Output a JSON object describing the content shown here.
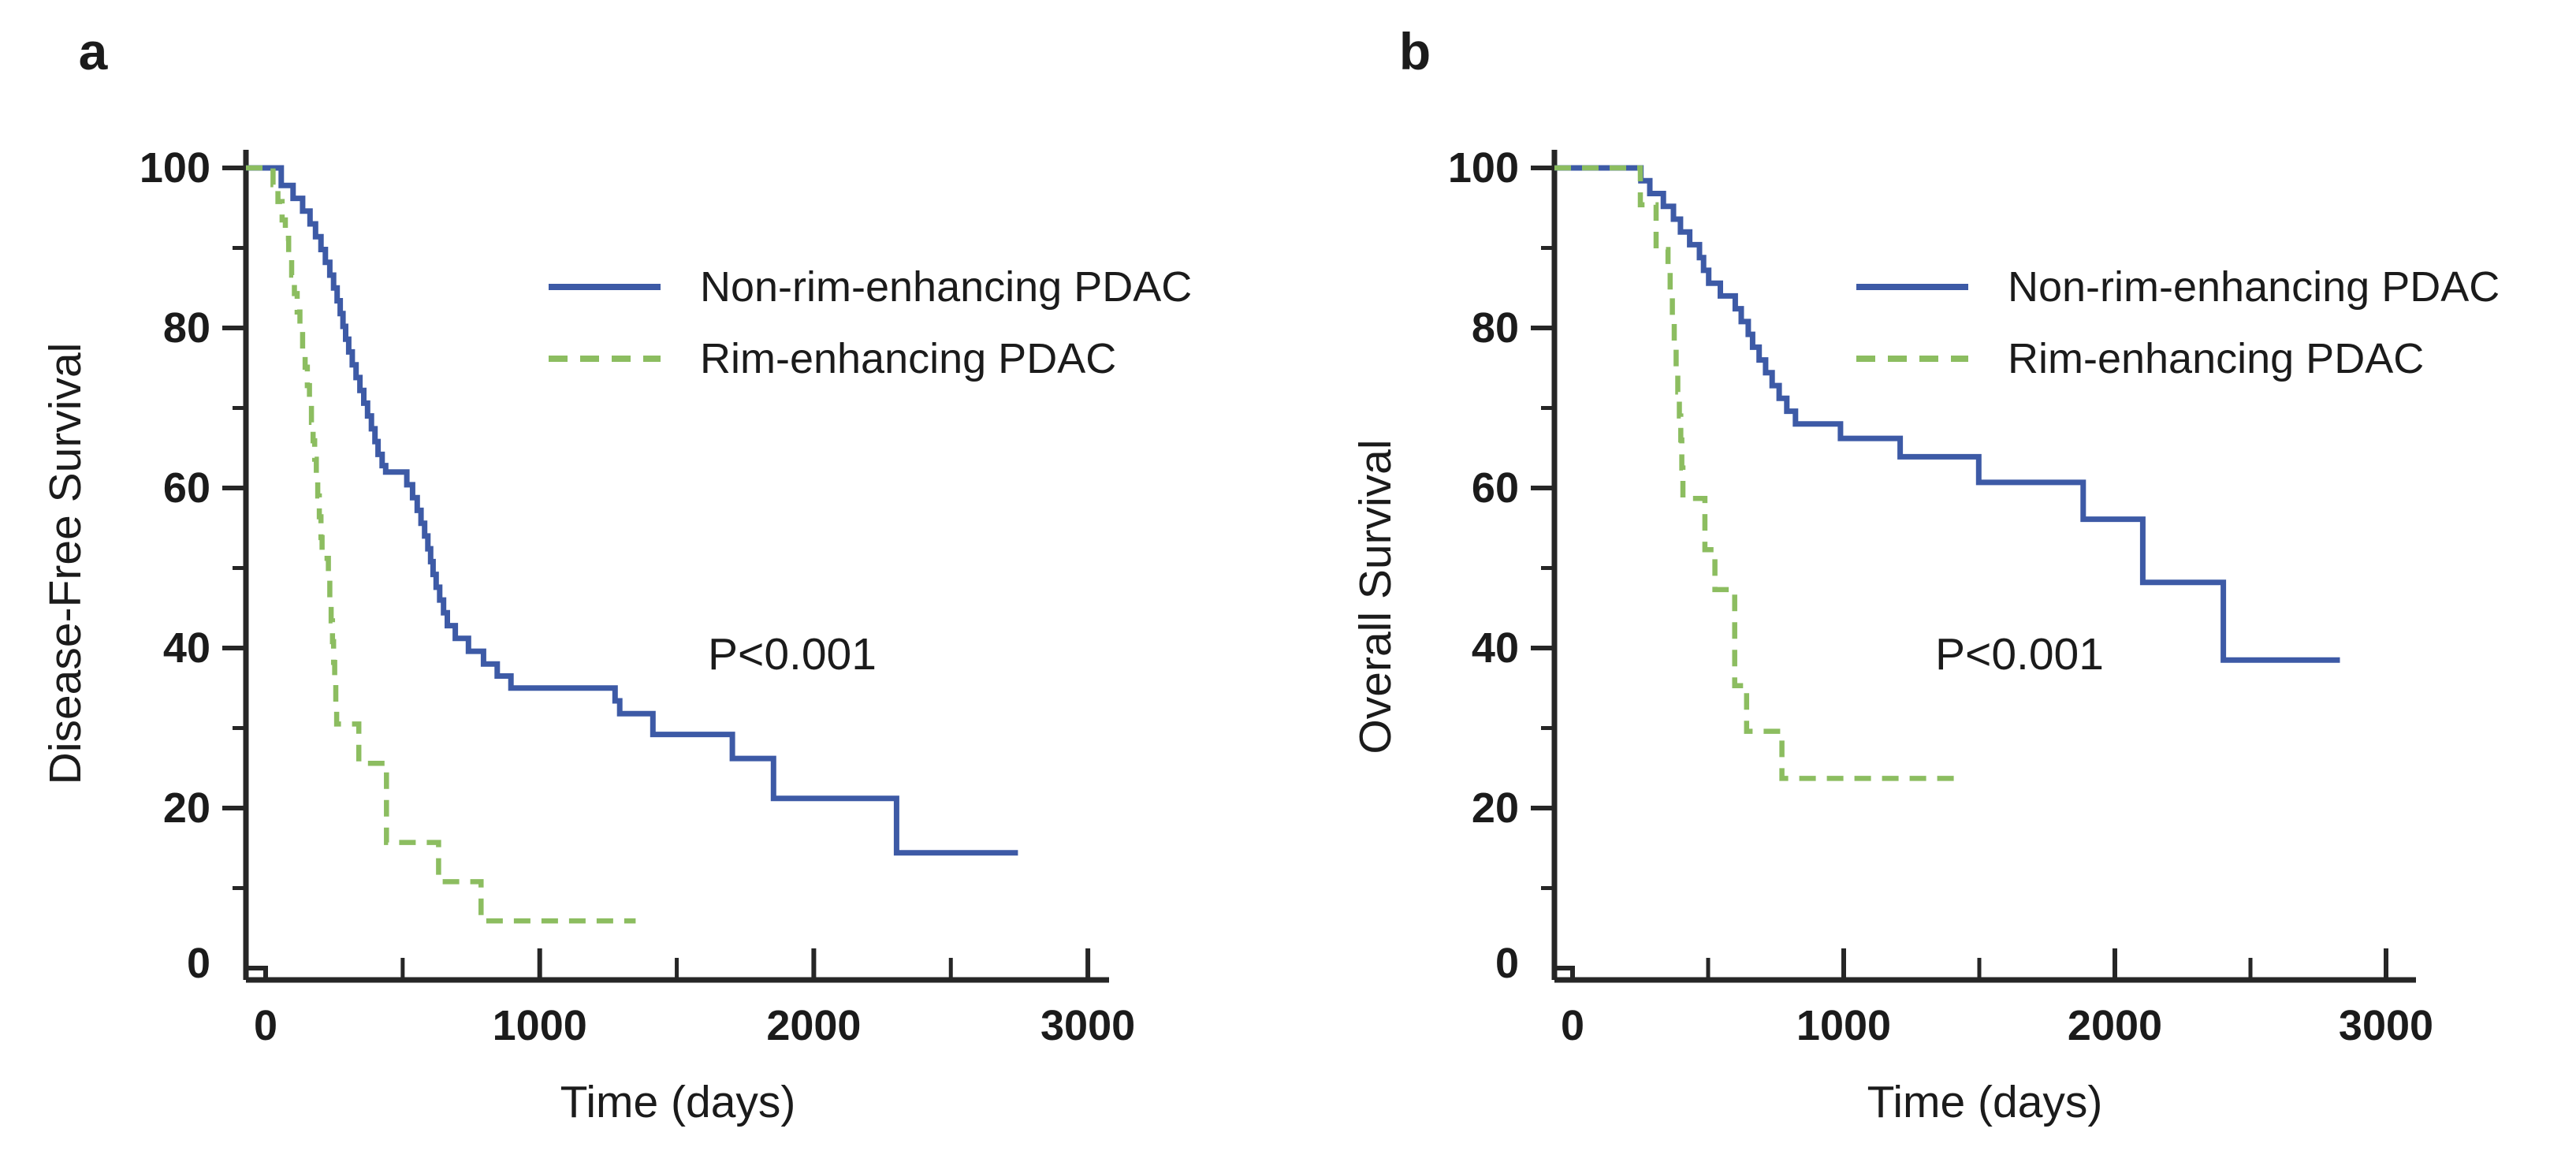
{
  "figure": {
    "background": "#ffffff",
    "panels": [
      {
        "label": "a",
        "ylabel": "Disease-Free Survival",
        "xlabel": "Time (days)",
        "annotation": "P<0.001",
        "legend": [
          "Non-rim-enhancing PDAC",
          "Rim-enhancing PDAC"
        ]
      },
      {
        "label": "b",
        "ylabel": "Overall Survival",
        "xlabel": "Time (days)",
        "annotation": "P<0.001",
        "legend": [
          "Non-rim-enhancing PDAC",
          "Rim-enhancing PDAC"
        ]
      }
    ],
    "colors": {
      "non_rim_enhancing": "#3d5aa6",
      "rim_enhancing": "#8cbd60",
      "axis": "#262626",
      "text": "#1b1b1b"
    }
  },
  "chart_data": [
    {
      "type": "line",
      "subtype": "kaplan-meier-step",
      "panel": "a",
      "title": "",
      "xlabel": "Time (days)",
      "ylabel": "Disease-Free Survival",
      "annotation": "P<0.001",
      "xlim": [
        0,
        3000
      ],
      "ylim": [
        0,
        100
      ],
      "xticks": [
        0,
        1000,
        2000,
        3000
      ],
      "xminorticks": [
        500,
        1500,
        2500
      ],
      "yticks": [
        0,
        20,
        40,
        60,
        80,
        100
      ],
      "yminorticks": [
        10,
        30,
        50,
        70,
        90
      ],
      "grid": false,
      "legend_position": "upper-right-inside",
      "series": [
        {
          "name": "Non-rim-enhancing PDAC",
          "color": "#3d5aa6",
          "dash": "solid",
          "steps": [
            [
              0,
              100
            ],
            [
              57,
              97.8
            ],
            [
              100,
              96.2
            ],
            [
              135,
              94.6
            ],
            [
              162,
              93
            ],
            [
              182,
              91.4
            ],
            [
              202,
              89.8
            ],
            [
              218,
              88.2
            ],
            [
              234,
              86.6
            ],
            [
              248,
              85
            ],
            [
              261,
              83.4
            ],
            [
              272,
              81.8
            ],
            [
              282,
              80.2
            ],
            [
              292,
              78.6
            ],
            [
              303,
              77
            ],
            [
              316,
              75.4
            ],
            [
              330,
              73.8
            ],
            [
              344,
              72.2
            ],
            [
              358,
              70.6
            ],
            [
              372,
              69
            ],
            [
              386,
              67.4
            ],
            [
              399,
              65.8
            ],
            [
              410,
              64.2
            ],
            [
              425,
              62.8
            ],
            [
              438,
              62
            ],
            [
              515,
              60.4
            ],
            [
              536,
              58.8
            ],
            [
              553,
              57.2
            ],
            [
              567,
              55.6
            ],
            [
              580,
              54
            ],
            [
              592,
              52.4
            ],
            [
              602,
              50.8
            ],
            [
              611,
              49.2
            ],
            [
              622,
              47.6
            ],
            [
              635,
              46
            ],
            [
              649,
              44.4
            ],
            [
              663,
              42.8
            ],
            [
              692,
              41.2
            ],
            [
              740,
              39.6
            ],
            [
              795,
              38
            ],
            [
              845,
              36.5
            ],
            [
              895,
              35
            ],
            [
              1275,
              33.4
            ],
            [
              1292,
              31.8
            ],
            [
              1413,
              29.2
            ],
            [
              1703,
              26.2
            ],
            [
              1853,
              21.2
            ],
            [
              2302,
              14.4
            ],
            [
              2745,
              14.4
            ]
          ]
        },
        {
          "name": "Rim-enhancing PDAC",
          "color": "#8cbd60",
          "dash": "dashed",
          "steps": [
            [
              0,
              100
            ],
            [
              27,
              97.9
            ],
            [
              45,
              95.8
            ],
            [
              60,
              93.5
            ],
            [
              72,
              91.2
            ],
            [
              84,
              88.9
            ],
            [
              95,
              86.6
            ],
            [
              105,
              84.3
            ],
            [
              115,
              82
            ],
            [
              125,
              79.7
            ],
            [
              135,
              77.4
            ],
            [
              144,
              75.1
            ],
            [
              152,
              72.8
            ],
            [
              160,
              70.5
            ],
            [
              167,
              68.2
            ],
            [
              173,
              65.9
            ],
            [
              179,
              63.6
            ],
            [
              185,
              61.3
            ],
            [
              190,
              59
            ],
            [
              196,
              56.4
            ],
            [
              202,
              53.8
            ],
            [
              206,
              51.2
            ],
            [
              229,
              48.6
            ],
            [
              234,
              46
            ],
            [
              239,
              43.4
            ],
            [
              244,
              40.8
            ],
            [
              248,
              38.2
            ],
            [
              252,
              35.6
            ],
            [
              256,
              33
            ],
            [
              259,
              30.5
            ],
            [
              340,
              25.6
            ],
            [
              441,
              15.7
            ],
            [
              631,
              10.8
            ],
            [
              786,
              5.9
            ],
            [
              1350,
              5.9
            ]
          ]
        }
      ]
    },
    {
      "type": "line",
      "subtype": "kaplan-meier-step",
      "panel": "b",
      "title": "",
      "xlabel": "Time (days)",
      "ylabel": "Overall Survival",
      "annotation": "P<0.001",
      "xlim": [
        0,
        3000
      ],
      "ylim": [
        0,
        100
      ],
      "xticks": [
        0,
        1000,
        2000,
        3000
      ],
      "xminorticks": [
        500,
        1500,
        2500
      ],
      "yticks": [
        0,
        20,
        40,
        60,
        80,
        100
      ],
      "yminorticks": [
        10,
        30,
        50,
        70,
        90
      ],
      "grid": false,
      "legend_position": "upper-right-inside",
      "series": [
        {
          "name": "Non-rim-enhancing PDAC",
          "color": "#3d5aa6",
          "dash": "solid",
          "steps": [
            [
              0,
              100
            ],
            [
              252,
              98.4
            ],
            [
              285,
              96.8
            ],
            [
              335,
              95.2
            ],
            [
              372,
              93.6
            ],
            [
              398,
              92
            ],
            [
              432,
              90.4
            ],
            [
              468,
              88.8
            ],
            [
              483,
              87.2
            ],
            [
              502,
              85.6
            ],
            [
              545,
              84
            ],
            [
              600,
              82.4
            ],
            [
              622,
              80.8
            ],
            [
              648,
              79.2
            ],
            [
              664,
              77.6
            ],
            [
              688,
              76
            ],
            [
              712,
              74.4
            ],
            [
              736,
              72.8
            ],
            [
              762,
              71.2
            ],
            [
              790,
              69.6
            ],
            [
              822,
              68
            ],
            [
              988,
              66.2
            ],
            [
              1208,
              63.9
            ],
            [
              1498,
              60.7
            ],
            [
              1883,
              56.1
            ],
            [
              2103,
              48.2
            ],
            [
              2400,
              38.5
            ],
            [
              2830,
              38.5
            ]
          ]
        },
        {
          "name": "Rim-enhancing PDAC",
          "color": "#8cbd60",
          "dash": "dashed",
          "steps": [
            [
              0,
              100
            ],
            [
              250,
              95.4
            ],
            [
              308,
              89.8
            ],
            [
              352,
              87
            ],
            [
              360,
              84
            ],
            [
              368,
              81
            ],
            [
              375,
              78
            ],
            [
              382,
              75
            ],
            [
              388,
              72
            ],
            [
              394,
              69
            ],
            [
              399,
              66
            ],
            [
              403,
              62.5
            ],
            [
              407,
              58.7
            ],
            [
              488,
              52.3
            ],
            [
              525,
              47.3
            ],
            [
              598,
              35.3
            ],
            [
              642,
              29.6
            ],
            [
              772,
              23.7
            ],
            [
              1445,
              23.7
            ]
          ]
        }
      ]
    }
  ]
}
